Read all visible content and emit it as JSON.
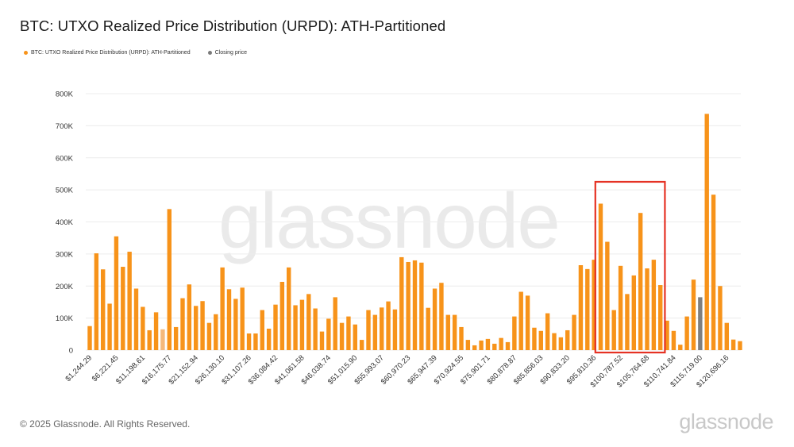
{
  "title": "BTC: UTXO Realized Price Distribution (URPD): ATH-Partitioned",
  "legend": [
    {
      "label": "BTC: UTXO Realized Price Distribution (URPD): ATH-Partitioned",
      "color": "#f7931a"
    },
    {
      "label": "Closing price",
      "color": "#7a7a7a"
    }
  ],
  "watermark": "glassnode",
  "footer": "© 2025 Glassnode. All Rights Reserved.",
  "logo": "glassnode",
  "colors": {
    "bar": "#f7931a",
    "bar_light": "#f5b87a",
    "closing": "#7f7f7f",
    "highlight_box": "#e53224",
    "grid": "#ececec"
  },
  "chart_data": {
    "type": "bar",
    "title": "BTC: UTXO Realized Price Distribution (URPD): ATH-Partitioned",
    "xlabel": "",
    "ylabel": "",
    "ylim": [
      0,
      800000
    ],
    "y_ticks": [
      "0",
      "100K",
      "200K",
      "300K",
      "400K",
      "500K",
      "600K",
      "700K",
      "800K"
    ],
    "x_tick_labels": [
      "$1,244.29",
      "$6,221.45",
      "$11,198.61",
      "$16,175.77",
      "$21,152.94",
      "$26,130.10",
      "$31,107.26",
      "$36,084.42",
      "$41,061.58",
      "$46,038.74",
      "$51,015.90",
      "$55,993.07",
      "$60,970.23",
      "$65,947.39",
      "$70,924.55",
      "$75,901.71",
      "$80,878.87",
      "$85,856.03",
      "$90,833.20",
      "$95,810.36",
      "$100,787.52",
      "$105,764.68",
      "$110,741.84",
      "$115,719.00",
      "$120,696.16"
    ],
    "series": [
      {
        "values": [
          75000,
          302000,
          252000,
          145000,
          355000,
          260000,
          307000,
          192000,
          135000,
          62000,
          118000,
          65000,
          440000,
          72000,
          162000,
          205000,
          138000,
          153000,
          85000,
          112000,
          258000,
          190000,
          160000,
          195000,
          52000,
          52000,
          125000,
          67000,
          142000,
          213000,
          258000,
          140000,
          157000,
          175000,
          130000,
          58000,
          98000,
          165000,
          85000,
          105000,
          80000,
          32000,
          125000,
          110000,
          133000,
          152000,
          127000,
          290000,
          275000,
          280000,
          273000,
          132000,
          192000,
          210000,
          110000,
          110000,
          72000,
          32000,
          15000,
          30000,
          35000,
          20000,
          38000,
          25000,
          105000,
          182000,
          170000,
          70000,
          60000,
          115000,
          53000,
          40000,
          62000,
          110000,
          265000,
          253000,
          282000,
          457000,
          338000,
          125000,
          263000,
          175000,
          233000,
          428000,
          255000,
          282000,
          203000,
          92000,
          60000,
          17000,
          105000,
          220000,
          165000,
          737000,
          485000,
          200000,
          85000,
          33000,
          28000
        ]
      }
    ],
    "light_bar_index": 11,
    "closing_price_bar_index": 92,
    "highlight_range": [
      77,
      86
    ]
  }
}
